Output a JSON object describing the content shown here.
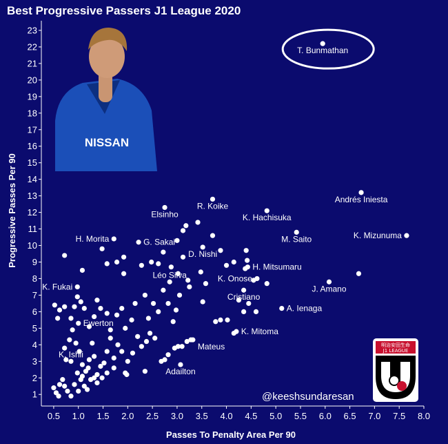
{
  "chart_data": {
    "type": "scatter",
    "title": "Best Progressive Passers J1 League 2020",
    "xlabel": "Passes To Penalty Area Per 90",
    "ylabel": "Progressive Passes Per 90",
    "xlim": [
      0.25,
      8.0
    ],
    "ylim": [
      0.3,
      23.5
    ],
    "xticks": [
      "0.5",
      "1.0",
      "1.5",
      "2.0",
      "2.5",
      "3.0",
      "3.5",
      "4.0",
      "4.5",
      "5.0",
      "5.5",
      "6.0",
      "6.5",
      "7.0",
      "7.5",
      "8.0"
    ],
    "yticks": [
      "1",
      "2",
      "3",
      "4",
      "5",
      "6",
      "7",
      "8",
      "9",
      "10",
      "11",
      "12",
      "13",
      "14",
      "15",
      "16",
      "17",
      "18",
      "19",
      "20",
      "21",
      "22",
      "23"
    ],
    "labeled_points": [
      {
        "name": "T. Bunmathan",
        "x": 5.95,
        "y": 22.2
      },
      {
        "name": "Andrés Iniesta",
        "x": 6.73,
        "y": 13.2
      },
      {
        "name": "K. Mizunuma",
        "x": 7.65,
        "y": 10.6
      },
      {
        "name": "R. Koike",
        "x": 3.72,
        "y": 12.8
      },
      {
        "name": "Elsinho",
        "x": 2.75,
        "y": 12.3
      },
      {
        "name": "K. Hachisuka",
        "x": 4.82,
        "y": 12.1
      },
      {
        "name": "M. Saito",
        "x": 5.42,
        "y": 10.8
      },
      {
        "name": "H. Morita",
        "x": 1.72,
        "y": 10.4
      },
      {
        "name": "G. Sakai",
        "x": 2.22,
        "y": 10.2
      },
      {
        "name": "D. Nishi",
        "x": 3.52,
        "y": 9.9
      },
      {
        "name": "H. Mitsumaru",
        "x": 4.43,
        "y": 8.7
      },
      {
        "name": "Léo Silva",
        "x": 2.85,
        "y": 7.8
      },
      {
        "name": "K. Onose",
        "x": 4.62,
        "y": 8.0
      },
      {
        "name": "J. Amano",
        "x": 6.08,
        "y": 7.8
      },
      {
        "name": "K. Fukai",
        "x": 0.98,
        "y": 7.5
      },
      {
        "name": "Cristiano",
        "x": 4.35,
        "y": 7.3
      },
      {
        "name": "A. Ienaga",
        "x": 5.12,
        "y": 6.2
      },
      {
        "name": "Ewerton",
        "x": 1.0,
        "y": 5.3
      },
      {
        "name": "K. Mitoma",
        "x": 4.2,
        "y": 4.8
      },
      {
        "name": "Mateus",
        "x": 3.32,
        "y": 4.3
      },
      {
        "name": "K. Ishii",
        "x": 0.85,
        "y": 3.0
      },
      {
        "name": "Adailton",
        "x": 3.07,
        "y": 2.8
      }
    ],
    "points": [
      [
        6.68,
        8.3
      ],
      [
        4.82,
        7.7
      ],
      [
        4.6,
        6.0
      ],
      [
        4.45,
        6.5
      ],
      [
        4.25,
        6.7
      ],
      [
        4.55,
        7.9
      ],
      [
        4.38,
        8.6
      ],
      [
        4.42,
        9.1
      ],
      [
        4.4,
        9.7
      ],
      [
        4.15,
        9.0
      ],
      [
        4.0,
        8.8
      ],
      [
        3.88,
        9.7
      ],
      [
        3.72,
        10.6
      ],
      [
        3.42,
        11.4
      ],
      [
        3.18,
        11.2
      ],
      [
        3.12,
        10.9
      ],
      [
        3.0,
        10.3
      ],
      [
        3.48,
        8.4
      ],
      [
        3.22,
        7.9
      ],
      [
        3.02,
        8.3
      ],
      [
        3.12,
        9.3
      ],
      [
        2.88,
        8.7
      ],
      [
        2.72,
        9.6
      ],
      [
        2.62,
        8.9
      ],
      [
        2.48,
        9.0
      ],
      [
        2.28,
        8.8
      ],
      [
        1.92,
        8.3
      ],
      [
        1.78,
        9.0
      ],
      [
        1.58,
        8.9
      ],
      [
        1.08,
        8.5
      ],
      [
        0.72,
        9.4
      ],
      [
        1.48,
        9.8
      ],
      [
        1.92,
        9.3
      ],
      [
        4.02,
        5.5
      ],
      [
        3.88,
        5.5
      ],
      [
        3.78,
        5.4
      ],
      [
        4.15,
        4.7
      ],
      [
        4.35,
        6.0
      ],
      [
        3.52,
        6.6
      ],
      [
        3.58,
        7.7
      ],
      [
        3.25,
        7.5
      ],
      [
        3.05,
        7.0
      ],
      [
        2.98,
        6.1
      ],
      [
        2.92,
        5.4
      ],
      [
        2.82,
        6.5
      ],
      [
        2.72,
        7.3
      ],
      [
        2.62,
        6.0
      ],
      [
        2.52,
        6.5
      ],
      [
        2.42,
        5.6
      ],
      [
        2.35,
        7.0
      ],
      [
        2.15,
        6.5
      ],
      [
        2.08,
        5.5
      ],
      [
        1.95,
        5.0
      ],
      [
        1.88,
        6.2
      ],
      [
        1.78,
        5.8
      ],
      [
        1.65,
        4.9
      ],
      [
        1.58,
        5.9
      ],
      [
        1.45,
        6.2
      ],
      [
        1.38,
        6.7
      ],
      [
        1.32,
        5.7
      ],
      [
        1.22,
        5.1
      ],
      [
        1.12,
        6.2
      ],
      [
        1.05,
        6.6
      ],
      [
        0.98,
        6.9
      ],
      [
        0.92,
        6.3
      ],
      [
        0.85,
        5.6
      ],
      [
        0.72,
        6.3
      ],
      [
        0.62,
        6.1
      ],
      [
        0.58,
        5.6
      ],
      [
        0.52,
        6.4
      ],
      [
        3.28,
        4.3
      ],
      [
        3.2,
        4.2
      ],
      [
        3.1,
        3.9
      ],
      [
        3.02,
        3.9
      ],
      [
        2.95,
        3.8
      ],
      [
        2.82,
        3.4
      ],
      [
        2.75,
        3.1
      ],
      [
        2.68,
        3.0
      ],
      [
        2.55,
        4.4
      ],
      [
        2.45,
        4.7
      ],
      [
        2.38,
        4.2
      ],
      [
        2.28,
        3.9
      ],
      [
        2.2,
        4.5
      ],
      [
        2.1,
        3.5
      ],
      [
        2.0,
        3.0
      ],
      [
        1.95,
        2.3
      ],
      [
        1.88,
        3.6
      ],
      [
        1.8,
        4.0
      ],
      [
        1.72,
        3.2
      ],
      [
        1.65,
        4.4
      ],
      [
        1.58,
        3.6
      ],
      [
        1.52,
        2.9
      ],
      [
        1.45,
        2.7
      ],
      [
        1.38,
        2.2
      ],
      [
        1.32,
        3.3
      ],
      [
        1.28,
        4.1
      ],
      [
        1.22,
        3.1
      ],
      [
        1.15,
        2.4
      ],
      [
        1.08,
        2.8
      ],
      [
        1.02,
        3.6
      ],
      [
        0.95,
        4.1
      ],
      [
        0.88,
        4.9
      ],
      [
        0.82,
        4.3
      ],
      [
        0.72,
        3.8
      ],
      [
        0.75,
        3.1
      ],
      [
        0.5,
        1.4
      ],
      [
        0.55,
        1.1
      ],
      [
        0.6,
        0.9
      ],
      [
        0.68,
        1.9
      ],
      [
        0.72,
        1.5
      ],
      [
        0.78,
        1.2
      ],
      [
        0.85,
        0.9
      ],
      [
        0.92,
        1.6
      ],
      [
        0.98,
        2.3
      ],
      [
        1.05,
        1.9
      ],
      [
        1.12,
        1.5
      ],
      [
        1.18,
        1.3
      ],
      [
        1.25,
        1.9
      ],
      [
        1.32,
        2.0
      ],
      [
        1.38,
        1.7
      ],
      [
        1.48,
        2.0
      ],
      [
        1.58,
        2.3
      ],
      [
        1.72,
        2.6
      ],
      [
        1.98,
        2.2
      ],
      [
        2.35,
        2.4
      ],
      [
        0.62,
        1.6
      ],
      [
        1.0,
        1.2
      ],
      [
        1.08,
        2.1
      ],
      [
        1.2,
        2.6
      ]
    ]
  },
  "ellipse_target": "T. Bunmathan",
  "photo": {
    "shirt_text": "NISSAN",
    "bg_color": "#1b4fb8"
  },
  "credit": "@keeshsundaresan",
  "logo": {
    "top_text": "明治安田生命",
    "sub_text": "J1 LEAGUE"
  },
  "colors": {
    "background": "#0b0b6e",
    "points": "#ffffff",
    "logo_red": "#c8102e"
  }
}
